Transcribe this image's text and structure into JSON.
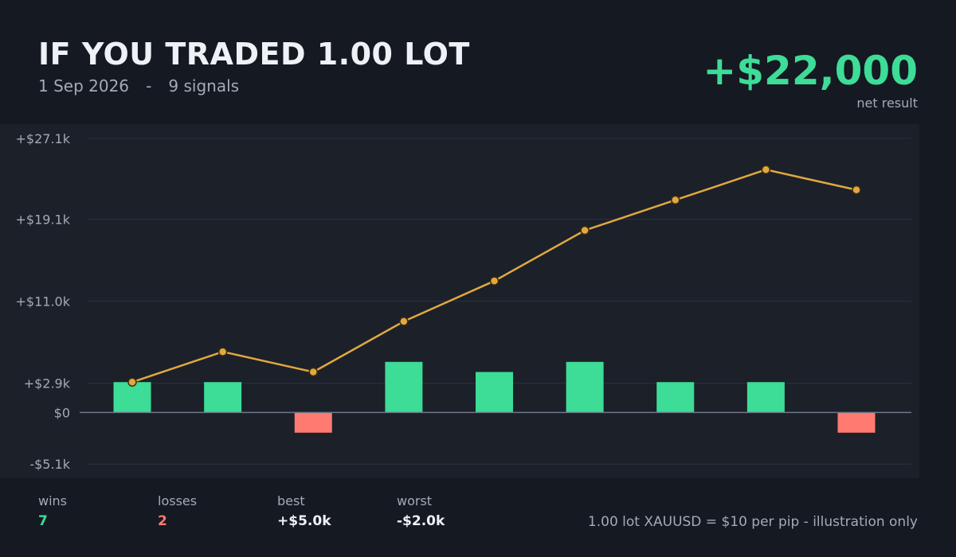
{
  "header": {
    "title": "IF YOU TRADED 1.00 LOT",
    "date": "1 Sep 2026",
    "separator": "-",
    "signals": "9 signals"
  },
  "net": {
    "value": "+$22,000",
    "label": "net result"
  },
  "colors": {
    "background": "#151922",
    "panel": "#1c2029",
    "win": "#3ddc97",
    "loss": "#ff7a70",
    "equity": "#e0a83e",
    "muted_text": "#a3aab8"
  },
  "chart_data": {
    "type": "bar",
    "x": [
      1,
      2,
      3,
      4,
      5,
      6,
      7,
      8,
      9
    ],
    "series": [
      {
        "type": "bar",
        "values": [
          3000,
          3000,
          -2000,
          5000,
          4000,
          5000,
          3000,
          3000,
          -2000
        ]
      },
      {
        "type": "line",
        "values": [
          3000,
          6000,
          4000,
          9000,
          13000,
          18000,
          21000,
          24000,
          22000
        ]
      }
    ],
    "yticks": [
      27100,
      19100,
      11000,
      2900,
      0,
      -5100
    ],
    "ytick_labels": [
      "+$27.1k",
      "+$19.1k",
      "+$11.0k",
      "+$2.9k",
      "$0",
      "-$5.1k"
    ],
    "ylim": [
      -6500,
      28500
    ],
    "grid": true
  },
  "stats": {
    "wins_label": "wins",
    "wins_value": "7",
    "losses_label": "losses",
    "losses_value": "2",
    "best_label": "best",
    "best_value": "+$5.0k",
    "worst_label": "worst",
    "worst_value": "-$2.0k"
  },
  "footnote": "1.00 lot XAUUSD = $10 per pip  -  illustration only"
}
